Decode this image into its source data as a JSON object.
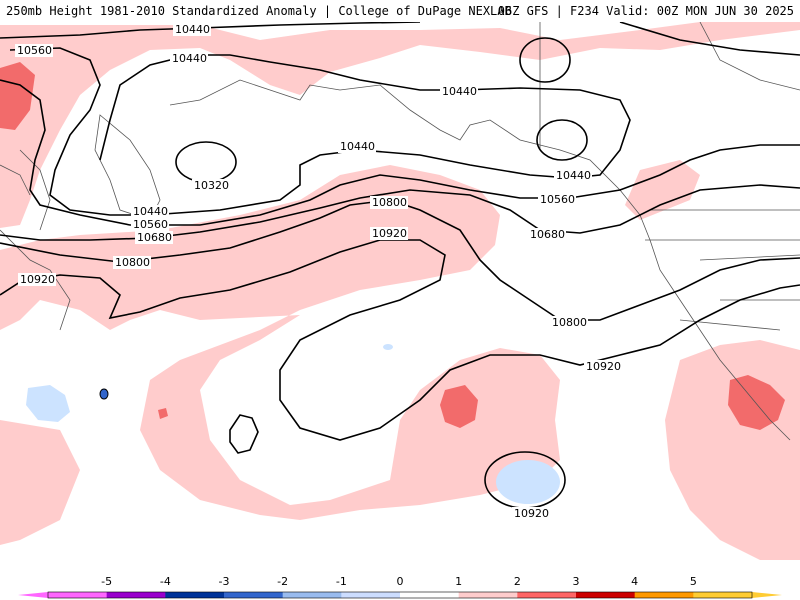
{
  "header": {
    "title_left": "250mb Height 1981-2010 Standardized Anomaly | College of DuPage NEXLAB",
    "title_right": "06Z GFS | F234 Valid: 00Z MON JUN 30 2025"
  },
  "contour_labels": [
    "10440",
    "10560",
    "10680",
    "10800",
    "10920",
    "10320"
  ],
  "colorbar": {
    "ticks": [
      "-5",
      "-4",
      "-3",
      "-2",
      "-1",
      "0",
      "1",
      "2",
      "3",
      "4",
      "5"
    ],
    "colors": [
      "#ff66ff",
      "#9900cc",
      "#003399",
      "#3366cc",
      "#99bbee",
      "#ccddff",
      "#ffffff",
      "#ffcccc",
      "#ff6666",
      "#cc0000",
      "#ff9900",
      "#ffcc33"
    ]
  },
  "colors": {
    "positive_weak": "#ffcccc",
    "positive_strong": "#f26b6b",
    "negative_weak": "#cce3ff",
    "contour": "#000000",
    "border": "#555555"
  }
}
